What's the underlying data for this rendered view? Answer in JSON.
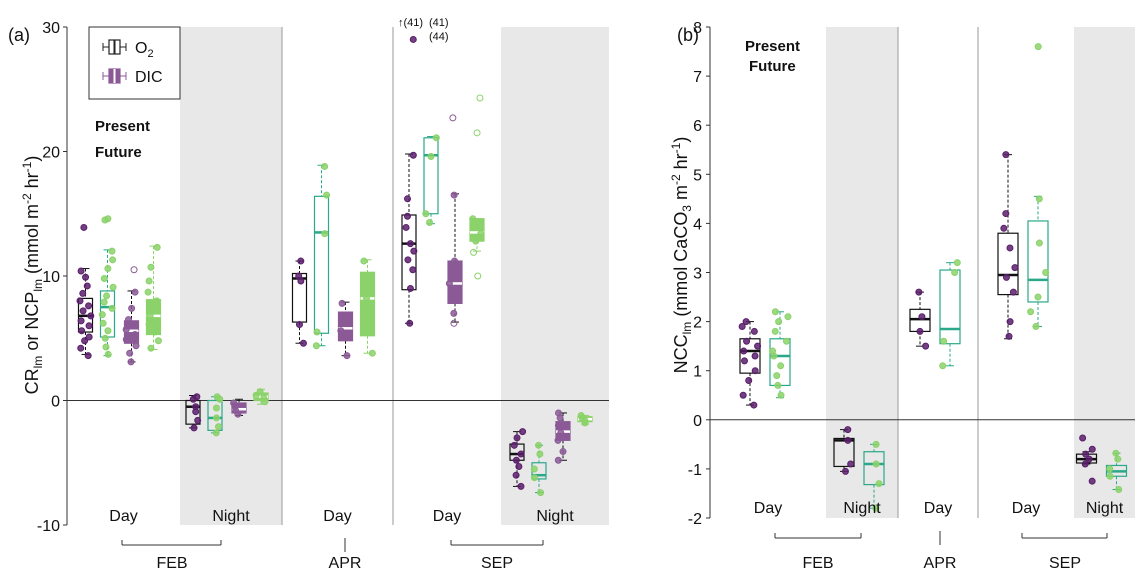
{
  "colors": {
    "present": "#5a1f6b",
    "present_dic": "#8b5a96",
    "future": "#2aa889",
    "future_dic": "#8bd26a",
    "future_text": "#7ed957",
    "night_shade": "#e8e8e8",
    "divider": "#9a9a9a"
  },
  "chart_data": [
    {
      "type": "box",
      "panel_label": "(a)",
      "ylabel": {
        "pre": "CR",
        "sub1": "lm",
        "mid": " or NCP",
        "sub2": "lm",
        "post1": " (mmol m",
        "sup1": "-2",
        "post2": " hr",
        "sup2": "-1",
        "post3": ")"
      },
      "ylim": [
        -10,
        30
      ],
      "yticks": [
        -10,
        0,
        10,
        20,
        30
      ],
      "legend": {
        "o2": {
          "label": "O",
          "sub": "2"
        },
        "dic": {
          "label": "DIC"
        },
        "present": "Present",
        "future": "Future"
      },
      "outlier_notes": [
        {
          "text": "↑(41)",
          "series": "present"
        },
        {
          "text": "(41)",
          "series": "future"
        },
        {
          "text": "(44)",
          "series": "future"
        }
      ],
      "groups": [
        {
          "label": "Day",
          "night": false,
          "boxes": [
            {
              "series": "present_o2",
              "q1": 5.5,
              "median": 6.8,
              "q3": 8.2,
              "wlo": 3.7,
              "whi": 10.6,
              "points": [
                3.6,
                4.2,
                4.8,
                5.1,
                5.6,
                6.0,
                6.4,
                6.8,
                7.2,
                7.6,
                8.0,
                8.6,
                9.2,
                9.9,
                10.4,
                13.9
              ]
            },
            {
              "series": "future_o2",
              "q1": 5.1,
              "median": 7.5,
              "q3": 8.8,
              "wlo": 3.6,
              "whi": 12.1,
              "points": [
                3.7,
                4.3,
                5.0,
                5.6,
                6.2,
                6.9,
                7.4,
                7.9,
                8.4,
                9.1,
                9.8,
                10.6,
                11.3,
                12.0,
                14.5,
                14.6
              ]
            },
            {
              "series": "present_dic",
              "q1": 4.6,
              "median": 5.6,
              "q3": 6.4,
              "wlo": 3.1,
              "whi": 8.8,
              "points": [
                3.1,
                3.8,
                4.4,
                4.9,
                5.3,
                5.7,
                6.1,
                6.5,
                7.4,
                8.7,
                10.5
              ]
            },
            {
              "series": "future_dic",
              "q1": 5.3,
              "median": 6.8,
              "q3": 8.1,
              "wlo": 4.1,
              "whi": 12.4,
              "points": [
                4.2,
                4.8,
                5.5,
                6.1,
                6.8,
                7.4,
                8.0,
                8.7,
                9.6,
                10.7,
                12.3
              ]
            }
          ]
        },
        {
          "label": "Night",
          "night": true,
          "boxes": [
            {
              "series": "present_o2",
              "q1": -1.9,
              "median": -0.5,
              "q3": 0.0,
              "wlo": -2.2,
              "whi": 0.4,
              "points": [
                -2.2,
                -1.6,
                -0.9,
                -0.5,
                0.1,
                0.3
              ]
            },
            {
              "series": "future_o2",
              "q1": -2.4,
              "median": -1.4,
              "q3": 0.0,
              "wlo": -2.6,
              "whi": 0.3,
              "points": [
                -2.6,
                -2.1,
                -1.4,
                -0.6,
                0.1,
                0.3
              ]
            },
            {
              "series": "present_dic",
              "q1": -1.0,
              "median": -0.7,
              "q3": -0.2,
              "wlo": -1.2,
              "whi": 0.1,
              "points": [
                -1.1,
                -0.8,
                -0.5,
                -0.2
              ]
            },
            {
              "series": "future_dic",
              "q1": 0.0,
              "median": 0.3,
              "q3": 0.6,
              "wlo": -0.3,
              "whi": 0.9,
              "points": [
                -0.1,
                0.2,
                0.4,
                0.7
              ]
            }
          ]
        },
        {
          "label": "Day",
          "night": false,
          "boxes": [
            {
              "series": "present_o2",
              "q1": 6.3,
              "median": 9.8,
              "q3": 10.2,
              "wlo": 4.6,
              "whi": 11.2,
              "points": [
                4.6,
                6.1,
                9.6,
                10.0,
                11.2
              ]
            },
            {
              "series": "future_o2",
              "q1": 5.4,
              "median": 13.5,
              "q3": 16.4,
              "wlo": 4.4,
              "whi": 18.9,
              "points": [
                4.4,
                5.5,
                13.4,
                16.5,
                18.8
              ]
            },
            {
              "series": "present_dic",
              "q1": 4.8,
              "median": 5.8,
              "q3": 7.1,
              "wlo": 3.6,
              "whi": 7.9,
              "points": [
                3.6,
                5.6,
                7.8
              ]
            },
            {
              "series": "future_dic",
              "q1": 5.2,
              "median": 8.2,
              "q3": 10.3,
              "wlo": 3.8,
              "whi": 11.3,
              "points": [
                3.8,
                8.2,
                11.2
              ]
            }
          ]
        },
        {
          "label": "Day",
          "night": false,
          "boxes": [
            {
              "series": "present_o2",
              "q1": 8.9,
              "median": 12.6,
              "q3": 14.9,
              "wlo": 6.2,
              "whi": 19.8,
              "points": [
                6.2,
                9.0,
                10.5,
                11.3,
                12.0,
                12.6,
                13.9,
                14.8,
                16.2,
                19.7,
                29.0
              ]
            },
            {
              "series": "future_o2",
              "q1": 15.0,
              "median": 19.7,
              "q3": 21.1,
              "wlo": 14.2,
              "whi": 21.2,
              "points": [
                14.3,
                15.0,
                19.6,
                21.1
              ]
            },
            {
              "series": "present_dic",
              "q1": 7.8,
              "median": 9.4,
              "q3": 11.2,
              "wlo": 6.3,
              "whi": 16.6,
              "points": [
                6.2,
                7.0,
                8.3,
                9.4,
                10.5,
                11.2,
                16.5,
                22.7
              ]
            },
            {
              "series": "future_dic",
              "q1": 12.8,
              "median": 13.5,
              "q3": 14.6,
              "wlo": 12.0,
              "whi": 14.6,
              "points": [
                10.0,
                11.9,
                12.8,
                13.4,
                14.1,
                14.6,
                21.5,
                24.3
              ]
            }
          ]
        },
        {
          "label": "Night",
          "night": true,
          "boxes": [
            {
              "series": "present_o2",
              "q1": -4.8,
              "median": -4.3,
              "q3": -3.5,
              "wlo": -6.9,
              "whi": -2.5,
              "points": [
                -6.9,
                -6.0,
                -5.3,
                -4.8,
                -4.3,
                -3.6,
                -3.0,
                -2.5
              ]
            },
            {
              "series": "future_o2",
              "q1": -6.3,
              "median": -6.0,
              "q3": -5.0,
              "wlo": -7.4,
              "whi": -3.6,
              "points": [
                -7.4,
                -6.2,
                -5.5,
                -4.3,
                -3.6
              ]
            },
            {
              "series": "present_dic",
              "q1": -3.2,
              "median": -2.5,
              "q3": -1.7,
              "wlo": -4.8,
              "whi": -1.0,
              "points": [
                -4.8,
                -4.1,
                -3.2,
                -2.6,
                -2.0,
                -1.4,
                -1.0
              ]
            },
            {
              "series": "future_dic",
              "q1": -1.7,
              "median": -1.5,
              "q3": -1.3,
              "wlo": -1.9,
              "whi": -1.2,
              "points": [
                -1.8,
                -1.6,
                -1.4,
                -1.2
              ]
            }
          ]
        }
      ],
      "months": [
        {
          "label": "FEB",
          "groups": [
            0,
            1
          ]
        },
        {
          "label": "APR",
          "groups": [
            2
          ]
        },
        {
          "label": "SEP",
          "groups": [
            3,
            4
          ]
        }
      ]
    },
    {
      "type": "box",
      "panel_label": "(b)",
      "ylabel": {
        "pre": "NCC",
        "sub1": "lm",
        "post1": " (mmol CaCO",
        "sub2": "3",
        "post2": " m",
        "sup1": "-2",
        "post3": " hr",
        "sup2": "-1",
        "post4": ")"
      },
      "ylim": [
        -2,
        8
      ],
      "yticks": [
        -2,
        -1,
        0,
        1,
        2,
        3,
        4,
        5,
        6,
        7,
        8
      ],
      "legend": {
        "present": "Present",
        "future": "Future"
      },
      "groups": [
        {
          "label": "Day",
          "night": false,
          "boxes": [
            {
              "series": "present_o2",
              "q1": 0.95,
              "median": 1.4,
              "q3": 1.65,
              "wlo": 0.3,
              "whi": 2.0,
              "points": [
                0.3,
                0.5,
                0.8,
                1.0,
                1.2,
                1.3,
                1.4,
                1.5,
                1.6,
                1.8,
                1.9,
                2.0
              ]
            },
            {
              "series": "future_o2",
              "q1": 0.7,
              "median": 1.3,
              "q3": 1.65,
              "wlo": 0.45,
              "whi": 2.2,
              "points": [
                0.5,
                0.7,
                0.9,
                1.1,
                1.3,
                1.4,
                1.6,
                1.8,
                2.0,
                2.1,
                2.2
              ]
            }
          ]
        },
        {
          "label": "Night",
          "night": true,
          "boxes": [
            {
              "series": "present_o2",
              "q1": -0.95,
              "median": -0.42,
              "q3": -0.38,
              "wlo": -1.05,
              "whi": -0.2,
              "points": [
                -1.05,
                -0.9,
                -0.42,
                -0.2
              ]
            },
            {
              "series": "future_o2",
              "q1": -1.32,
              "median": -0.9,
              "q3": -0.65,
              "wlo": -1.8,
              "whi": -0.5,
              "points": [
                -1.8,
                -1.3,
                -0.9,
                -0.5
              ]
            }
          ]
        },
        {
          "label": "Day",
          "night": false,
          "boxes": [
            {
              "series": "present_o2",
              "q1": 1.8,
              "median": 2.05,
              "q3": 2.25,
              "wlo": 1.5,
              "whi": 2.6,
              "points": [
                1.5,
                1.8,
                2.1,
                2.6
              ]
            },
            {
              "series": "future_o2",
              "q1": 1.55,
              "median": 1.85,
              "q3": 3.05,
              "wlo": 1.1,
              "whi": 3.2,
              "points": [
                1.1,
                1.6,
                3.0,
                3.2
              ]
            }
          ]
        },
        {
          "label": "Day",
          "night": false,
          "boxes": [
            {
              "series": "present_o2",
              "q1": 2.55,
              "median": 2.95,
              "q3": 3.8,
              "wlo": 1.65,
              "whi": 5.4,
              "points": [
                1.7,
                2.0,
                2.6,
                2.9,
                3.1,
                3.5,
                3.9,
                4.2,
                5.4
              ]
            },
            {
              "series": "future_o2",
              "q1": 2.4,
              "median": 2.85,
              "q3": 4.05,
              "wlo": 1.9,
              "whi": 4.55,
              "points": [
                1.9,
                2.2,
                2.5,
                3.0,
                3.6,
                4.5,
                7.6
              ]
            }
          ]
        },
        {
          "label": "Night",
          "night": true,
          "boxes": [
            {
              "series": "present_o2",
              "q1": -0.88,
              "median": -0.8,
              "q3": -0.7,
              "wlo": -0.9,
              "whi": -0.65,
              "points": [
                -1.25,
                -0.9,
                -0.8,
                -0.7,
                -0.6,
                -0.37
              ]
            },
            {
              "series": "future_o2",
              "q1": -1.15,
              "median": -1.05,
              "q3": -0.93,
              "wlo": -1.42,
              "whi": -0.68,
              "points": [
                -1.42,
                -1.15,
                -1.0,
                -0.8,
                -0.68
              ]
            }
          ]
        }
      ],
      "months": [
        {
          "label": "FEB",
          "groups": [
            0,
            1
          ]
        },
        {
          "label": "APR",
          "groups": [
            2
          ]
        },
        {
          "label": "SEP",
          "groups": [
            3,
            4
          ]
        }
      ]
    }
  ]
}
